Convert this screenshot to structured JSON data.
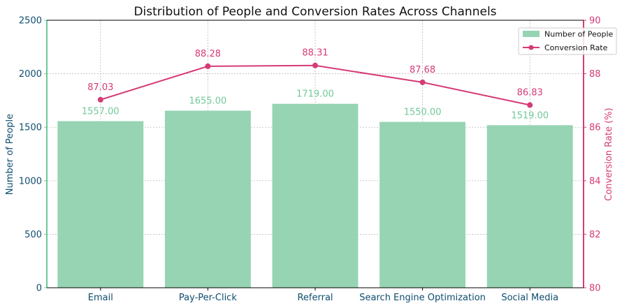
{
  "chart_data": {
    "type": "bar",
    "title": "Distribution of People and Conversion Rates Across Channels",
    "categories": [
      "Email",
      "Pay-Per-Click",
      "Referral",
      "Search Engine Optimization",
      "Social Media"
    ],
    "series": [
      {
        "name": "Number of People",
        "type": "bar",
        "axis": "left",
        "values": [
          1557,
          1655,
          1719,
          1550,
          1519
        ],
        "labels": [
          "1557.00",
          "1655.00",
          "1719.00",
          "1550.00",
          "1519.00"
        ],
        "color": "#96d4b3",
        "label_color": "#6fc998"
      },
      {
        "name": "Conversion Rate",
        "type": "line",
        "axis": "right",
        "values": [
          87.03,
          88.28,
          88.31,
          87.68,
          86.83
        ],
        "labels": [
          "87.03",
          "88.28",
          "88.31",
          "87.68",
          "86.83"
        ],
        "color": "#d63a77"
      }
    ],
    "ylabel_left": "Number of People",
    "ylabel_right": "Conversion Rate (%)",
    "ylim_left": [
      0,
      2500
    ],
    "yticks_left": [
      0,
      500,
      1000,
      1500,
      2000,
      2500
    ],
    "ylim_right": [
      80,
      90
    ],
    "yticks_right": [
      80,
      82,
      84,
      86,
      88,
      90
    ],
    "grid": true,
    "legend": "top-right",
    "axis_colors": {
      "left_spine": "#6fc998",
      "right_spine": "#d63a77",
      "left_text": "#0e4d6f",
      "right_text": "#d63a77",
      "x_text": "#0e4d6f"
    }
  }
}
